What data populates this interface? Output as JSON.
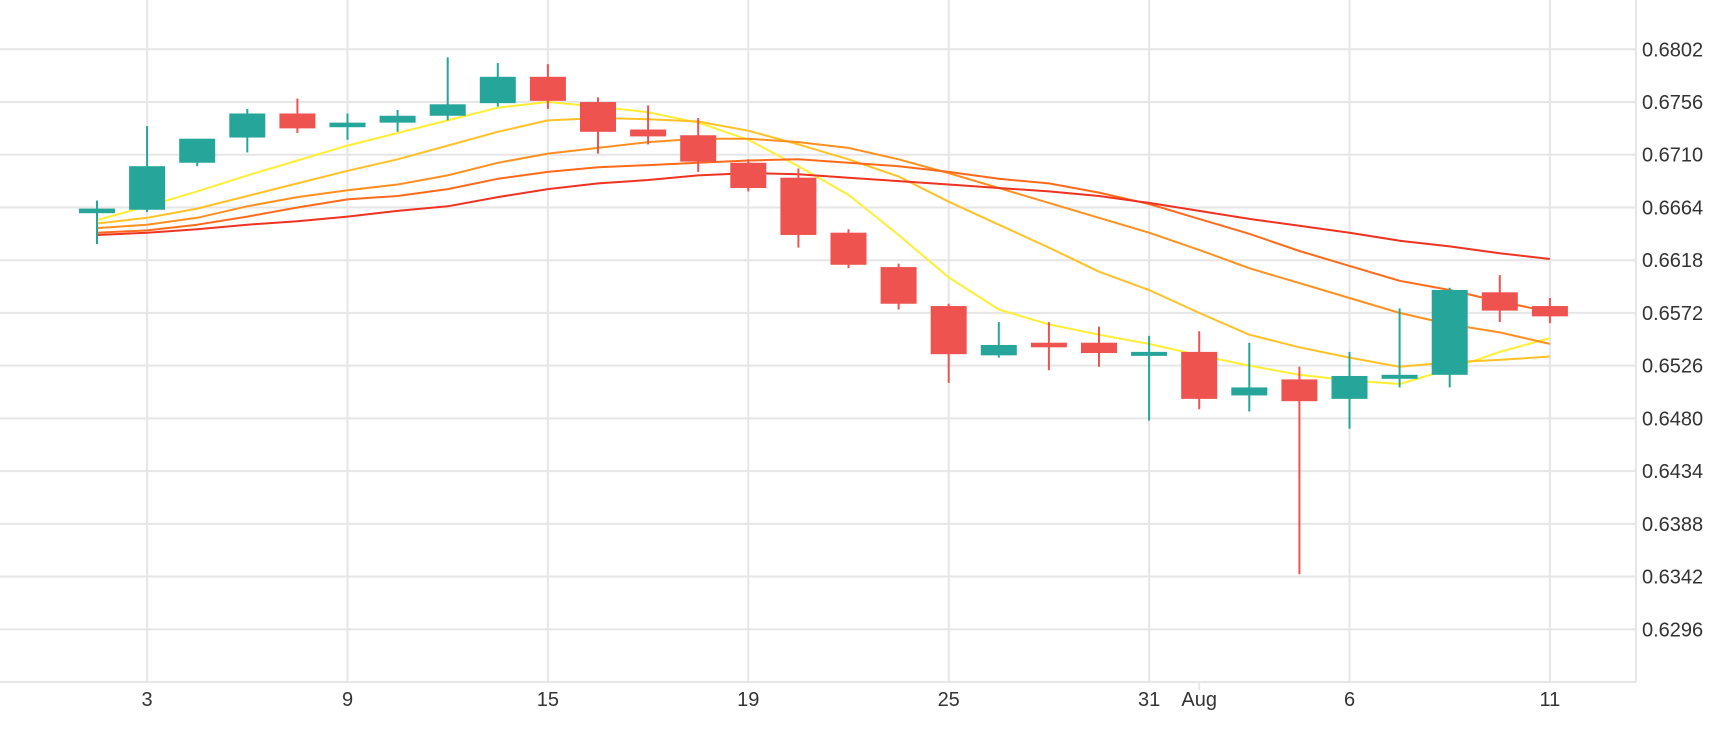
{
  "chart_data": {
    "type": "candlestick",
    "y_axis": {
      "position": "right",
      "ticks": [
        0.6802,
        0.6756,
        0.671,
        0.6664,
        0.6618,
        0.6572,
        0.6526,
        0.648,
        0.6434,
        0.6388,
        0.6342,
        0.6296
      ],
      "tick_labels": [
        "0.6802",
        "0.6756",
        "0.6710",
        "0.6664",
        "0.6618",
        "0.6572",
        "0.6526",
        "0.6480",
        "0.6434",
        "0.6388",
        "0.6342",
        "0.6296"
      ],
      "range": [
        0.625,
        0.6845
      ]
    },
    "x_axis": {
      "ticks": [
        {
          "label": "3",
          "index": 1
        },
        {
          "label": "9",
          "index": 5
        },
        {
          "label": "15",
          "index": 9
        },
        {
          "label": "19",
          "index": 13
        },
        {
          "label": "25",
          "index": 17
        },
        {
          "label": "31",
          "index": 21
        },
        {
          "label": "Aug",
          "index": 22
        },
        {
          "label": "6",
          "index": 25
        },
        {
          "label": "11",
          "index": 29
        }
      ]
    },
    "grid": true,
    "colors": {
      "up": "#26a69a",
      "down": "#ef5350",
      "grid": "#e6e6e6"
    },
    "candles": [
      {
        "o": 0.6659,
        "h": 0.667,
        "l": 0.6632,
        "c": 0.6663
      },
      {
        "o": 0.6662,
        "h": 0.6735,
        "l": 0.666,
        "c": 0.67
      },
      {
        "o": 0.6703,
        "h": 0.6722,
        "l": 0.67,
        "c": 0.6724
      },
      {
        "o": 0.6725,
        "h": 0.675,
        "l": 0.6712,
        "c": 0.6746
      },
      {
        "o": 0.6746,
        "h": 0.6759,
        "l": 0.6729,
        "c": 0.6733
      },
      {
        "o": 0.6734,
        "h": 0.6746,
        "l": 0.6723,
        "c": 0.6738
      },
      {
        "o": 0.6738,
        "h": 0.6749,
        "l": 0.673,
        "c": 0.6744
      },
      {
        "o": 0.6744,
        "h": 0.6795,
        "l": 0.674,
        "c": 0.6754
      },
      {
        "o": 0.6755,
        "h": 0.679,
        "l": 0.6752,
        "c": 0.6778
      },
      {
        "o": 0.6778,
        "h": 0.6789,
        "l": 0.675,
        "c": 0.6757
      },
      {
        "o": 0.6756,
        "h": 0.676,
        "l": 0.6711,
        "c": 0.673
      },
      {
        "o": 0.6732,
        "h": 0.6753,
        "l": 0.6719,
        "c": 0.6726
      },
      {
        "o": 0.6727,
        "h": 0.6742,
        "l": 0.6695,
        "c": 0.6704
      },
      {
        "o": 0.6703,
        "h": 0.6706,
        "l": 0.6678,
        "c": 0.6681
      },
      {
        "o": 0.669,
        "h": 0.6698,
        "l": 0.6629,
        "c": 0.664
      },
      {
        "o": 0.6642,
        "h": 0.6645,
        "l": 0.6611,
        "c": 0.6614
      },
      {
        "o": 0.6612,
        "h": 0.6615,
        "l": 0.6575,
        "c": 0.658
      },
      {
        "o": 0.6578,
        "h": 0.658,
        "l": 0.6511,
        "c": 0.6536
      },
      {
        "o": 0.6535,
        "h": 0.6564,
        "l": 0.6533,
        "c": 0.6544
      },
      {
        "o": 0.6546,
        "h": 0.6564,
        "l": 0.6522,
        "c": 0.6542
      },
      {
        "o": 0.6546,
        "h": 0.656,
        "l": 0.6525,
        "c": 0.6537
      },
      {
        "o": 0.6536,
        "h": 0.6552,
        "l": 0.6478,
        "c": 0.6538
      },
      {
        "o": 0.6538,
        "h": 0.6556,
        "l": 0.6488,
        "c": 0.6497
      },
      {
        "o": 0.65,
        "h": 0.6546,
        "l": 0.6486,
        "c": 0.6507
      },
      {
        "o": 0.6514,
        "h": 0.6525,
        "l": 0.6344,
        "c": 0.6495
      },
      {
        "o": 0.6497,
        "h": 0.6538,
        "l": 0.6471,
        "c": 0.6517
      },
      {
        "o": 0.6518,
        "h": 0.6576,
        "l": 0.6507,
        "c": 0.6518
      },
      {
        "o": 0.6518,
        "h": 0.6594,
        "l": 0.6507,
        "c": 0.6592
      },
      {
        "o": 0.659,
        "h": 0.6605,
        "l": 0.6564,
        "c": 0.6574
      },
      {
        "o": 0.6578,
        "h": 0.6585,
        "l": 0.6563,
        "c": 0.6569
      }
    ],
    "moving_averages": [
      {
        "color": "#ffee33",
        "values": [
          0.6653,
          0.6665,
          0.6678,
          0.6692,
          0.6705,
          0.6718,
          0.6729,
          0.674,
          0.6751,
          0.6756,
          0.6752,
          0.6747,
          0.6738,
          0.6723,
          0.67,
          0.6675,
          0.664,
          0.6603,
          0.6575,
          0.6562,
          0.6553,
          0.6545,
          0.6535,
          0.6526,
          0.6518,
          0.6513,
          0.651,
          0.6523,
          0.6538,
          0.655
        ]
      },
      {
        "color": "#ffc125",
        "values": [
          0.665,
          0.6655,
          0.6663,
          0.6674,
          0.6685,
          0.6696,
          0.6706,
          0.6718,
          0.673,
          0.674,
          0.6742,
          0.6741,
          0.6739,
          0.6731,
          0.6719,
          0.6706,
          0.6691,
          0.6669,
          0.6649,
          0.6629,
          0.6608,
          0.6592,
          0.6572,
          0.6553,
          0.6542,
          0.6533,
          0.6525,
          0.6529,
          0.6531,
          0.6534
        ]
      },
      {
        "color": "#ff9020",
        "values": [
          0.6646,
          0.6649,
          0.6655,
          0.6665,
          0.6673,
          0.6679,
          0.6684,
          0.6692,
          0.6703,
          0.6711,
          0.6716,
          0.6721,
          0.6724,
          0.6724,
          0.6721,
          0.6716,
          0.6706,
          0.6694,
          0.6681,
          0.6668,
          0.6655,
          0.6642,
          0.6627,
          0.6611,
          0.6598,
          0.6585,
          0.6572,
          0.6562,
          0.6555,
          0.6545
        ]
      },
      {
        "color": "#ff6a1a",
        "values": [
          0.6642,
          0.6644,
          0.6649,
          0.6656,
          0.6664,
          0.6671,
          0.6674,
          0.668,
          0.6689,
          0.6695,
          0.6699,
          0.6701,
          0.6703,
          0.6705,
          0.6706,
          0.6703,
          0.67,
          0.6695,
          0.6689,
          0.6685,
          0.6677,
          0.6667,
          0.6654,
          0.6641,
          0.6626,
          0.6613,
          0.66,
          0.6592,
          0.6582,
          0.6573
        ]
      },
      {
        "color": "#ee3322",
        "values": [
          0.664,
          0.6642,
          0.6645,
          0.6649,
          0.6652,
          0.6656,
          0.6661,
          0.6665,
          0.6673,
          0.668,
          0.6685,
          0.6688,
          0.6692,
          0.6694,
          0.6693,
          0.669,
          0.6687,
          0.6684,
          0.6681,
          0.6678,
          0.6674,
          0.6668,
          0.6661,
          0.6654,
          0.6648,
          0.6642,
          0.6635,
          0.663,
          0.6624,
          0.6619
        ]
      }
    ]
  }
}
